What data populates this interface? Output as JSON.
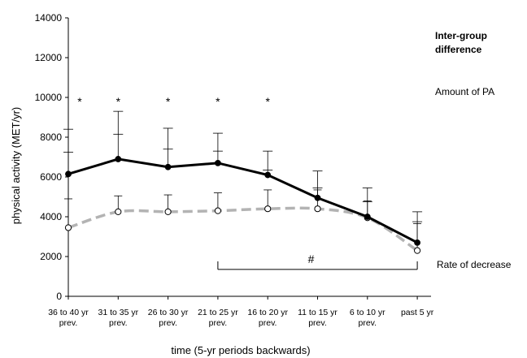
{
  "chart_data": {
    "type": "line",
    "ylabel": "physical activity (MET/yr)",
    "xlabel": "time (5-yr periods backwards)",
    "ylim": [
      0,
      14000
    ],
    "yticks": [
      0,
      2000,
      4000,
      6000,
      8000,
      10000,
      12000,
      14000
    ],
    "categories": [
      [
        "36 to 40 yr",
        "prev."
      ],
      [
        "31 to 35 yr",
        "prev."
      ],
      [
        "26 to 30 yr",
        "prev."
      ],
      [
        "21 to 25 yr",
        "prev."
      ],
      [
        "16 to 20 yr",
        "prev."
      ],
      [
        "11 to 15 yr",
        "prev."
      ],
      [
        "6 to 10 yr",
        "prev."
      ],
      [
        "past 5 yr",
        ""
      ]
    ],
    "series": [
      {
        "style": "solid-black-filled-markers",
        "values": [
          6150,
          6900,
          6500,
          6700,
          6100,
          4950,
          4000,
          2700
        ],
        "error_upper": [
          8400,
          9300,
          8450,
          8200,
          7300,
          6300,
          5450,
          4250
        ],
        "error_cap_inner": [
          7250,
          8150,
          7400,
          7300,
          6350,
          5450,
          4750,
          3750
        ]
      },
      {
        "style": "dashed-gray-open-markers",
        "values": [
          3450,
          4250,
          4250,
          4300,
          4400,
          4400,
          3950,
          2300
        ],
        "error_upper": [
          4900,
          5050,
          5100,
          5200,
          5350,
          5350,
          4800,
          3650
        ]
      }
    ],
    "significance_stars": [
      0,
      1,
      2,
      3,
      4
    ],
    "star_symbol": "*",
    "bracket": {
      "from": 3,
      "to": 7,
      "y": 1350,
      "symbol": "#"
    },
    "annotations": {
      "title_line1": "Inter-group",
      "title_line2": "difference",
      "amount": "Amount of PA",
      "rate": "Rate of decrease"
    },
    "colors": {
      "solid": "#000000",
      "dashed": "#b3b3b3",
      "axis": "#000000"
    }
  }
}
